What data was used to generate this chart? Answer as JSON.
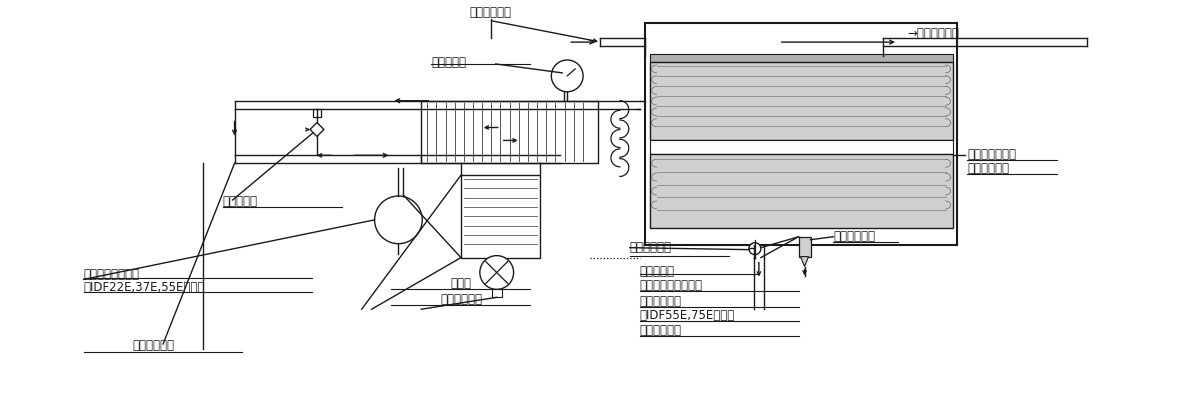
{
  "bg_color": "#ffffff",
  "lc": "#1a1a1a",
  "gc": "#b0b0b0",
  "mgc": "#d0d0d0",
  "labels": {
    "air_in": "圧縮空気入口",
    "air_out": "→圧縮空気出口",
    "evap_therm": "蕲発温度計",
    "cooler": "クーラリヒータ",
    "heat_exch": "（熱交换器）",
    "auto_drain": "オートドレン",
    "ball_valve": "ボールバルブ",
    "drain_out": "ドレン出口",
    "cap_tube": "キャピラリチューブ",
    "hi_sw": "高圧スイッチ",
    "hi_sw_note": "（IDF55E,75Eのみ）",
    "press_sw": "圧力スイッチ",
    "cap_valve": "容量調整弁",
    "accum": "アキュームレータ",
    "accum_note": "（IDF22E,37E,55Eのみ）",
    "condenser": "凝縮器",
    "fan_motor": "ファンモータ",
    "compressor": "冷凍用圧縮機"
  }
}
